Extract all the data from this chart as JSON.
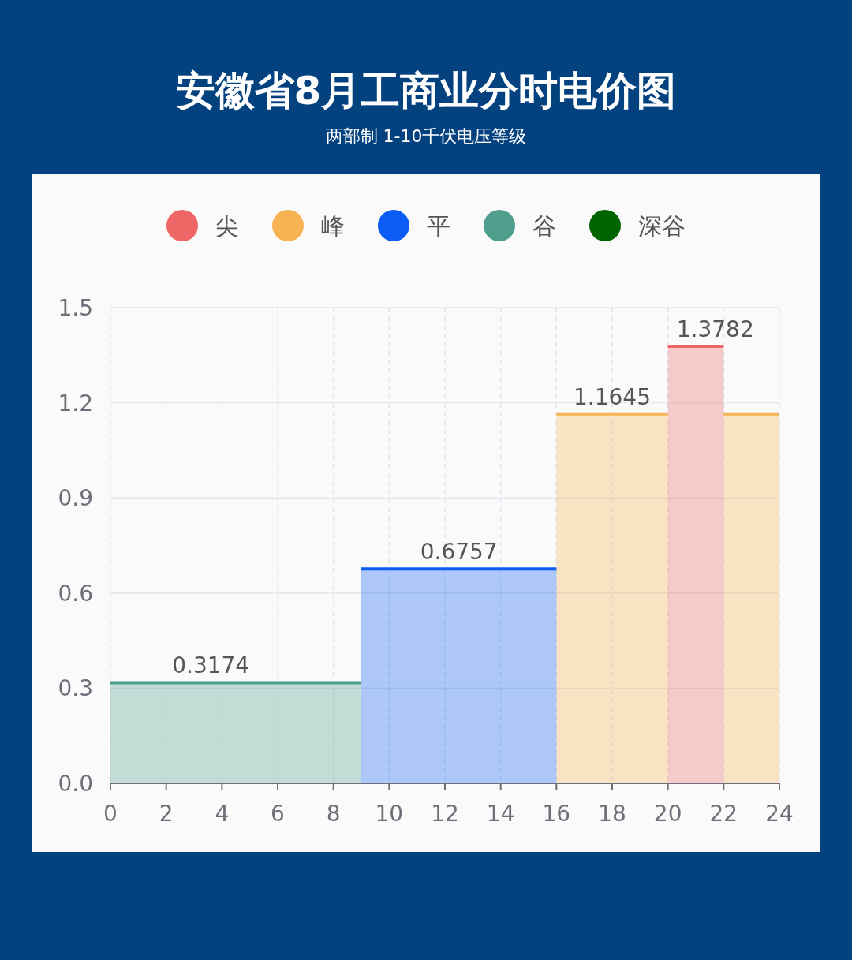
{
  "chart_data": {
    "type": "area",
    "title": "安徽省8月工商业分时电价图",
    "subtitle": "两部制 1-10千伏电压等级",
    "legend": "top",
    "grid": true,
    "xlim": [
      0,
      24
    ],
    "xticks": [
      0,
      2,
      4,
      6,
      8,
      10,
      12,
      14,
      16,
      18,
      20,
      22,
      24
    ],
    "ylim": [
      0,
      1.5
    ],
    "yticks": [
      {
        "value": 0,
        "label": "0.0"
      },
      0.3,
      0.6,
      0.9,
      1.2,
      1.5
    ],
    "series": [
      {
        "name": "尖",
        "color": "#ee6666",
        "x": [
          20,
          22
        ],
        "values": [
          1.3782,
          1.3782
        ]
      },
      {
        "name": "峰",
        "color": "#f5b352",
        "x": [
          16,
          20
        ],
        "values": [
          1.1645,
          1.1645
        ]
      },
      {
        "color": "#f5b352",
        "x": [
          22,
          24
        ],
        "values": [
          1.1645,
          1.1645
        ]
      },
      {
        "name": "平",
        "color": "#0a5cf5",
        "x": [
          9,
          16
        ],
        "values": [
          0.6757,
          0.6757
        ]
      },
      {
        "name": "谷",
        "color": "#4f9e8c",
        "x": [
          0,
          9
        ],
        "values": [
          0.3174,
          0.3174
        ]
      },
      {
        "name": "深谷",
        "color": "#006400"
      }
    ],
    "annotations": [
      {
        "text": "0.3174",
        "x": 3.6,
        "y": 0.3174
      },
      {
        "text": "0.6757",
        "x": 12.5,
        "y": 0.6757
      },
      {
        "text": "1.1645",
        "x": 18,
        "y": 1.1645
      },
      {
        "text": "1.3782",
        "x": 21.7,
        "y": 1.3782
      }
    ]
  }
}
